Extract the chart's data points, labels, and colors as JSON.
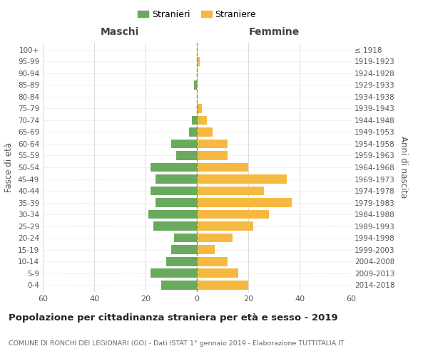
{
  "age_groups": [
    "0-4",
    "5-9",
    "10-14",
    "15-19",
    "20-24",
    "25-29",
    "30-34",
    "35-39",
    "40-44",
    "45-49",
    "50-54",
    "55-59",
    "60-64",
    "65-69",
    "70-74",
    "75-79",
    "80-84",
    "85-89",
    "90-94",
    "95-99",
    "100+"
  ],
  "birth_years": [
    "2014-2018",
    "2009-2013",
    "2004-2008",
    "1999-2003",
    "1994-1998",
    "1989-1993",
    "1984-1988",
    "1979-1983",
    "1974-1978",
    "1969-1973",
    "1964-1968",
    "1959-1963",
    "1954-1958",
    "1949-1953",
    "1944-1948",
    "1939-1943",
    "1934-1938",
    "1929-1933",
    "1924-1928",
    "1919-1923",
    "≤ 1918"
  ],
  "maschi": [
    14,
    18,
    12,
    10,
    9,
    17,
    19,
    16,
    18,
    16,
    18,
    8,
    10,
    3,
    2,
    0,
    0,
    1,
    0,
    0,
    0
  ],
  "femmine": [
    20,
    16,
    12,
    7,
    14,
    22,
    28,
    37,
    26,
    35,
    20,
    12,
    12,
    6,
    4,
    2,
    0,
    0,
    0,
    1,
    0
  ],
  "male_color": "#6aaa5e",
  "female_color": "#f5b942",
  "background_color": "#ffffff",
  "grid_color": "#cccccc",
  "center_line_color": "#999900",
  "xlim": 60,
  "xlabel_left": "Maschi",
  "xlabel_right": "Femmine",
  "ylabel_left": "Fasce di età",
  "ylabel_right": "Anni di nascita",
  "title": "Popolazione per cittadinanza straniera per età e sesso - 2019",
  "subtitle": "COMUNE DI RONCHI DEI LEGIONARI (GO) - Dati ISTAT 1° gennaio 2019 - Elaborazione TUTTITALIA.IT",
  "legend_male": "Stranieri",
  "legend_female": "Straniere"
}
